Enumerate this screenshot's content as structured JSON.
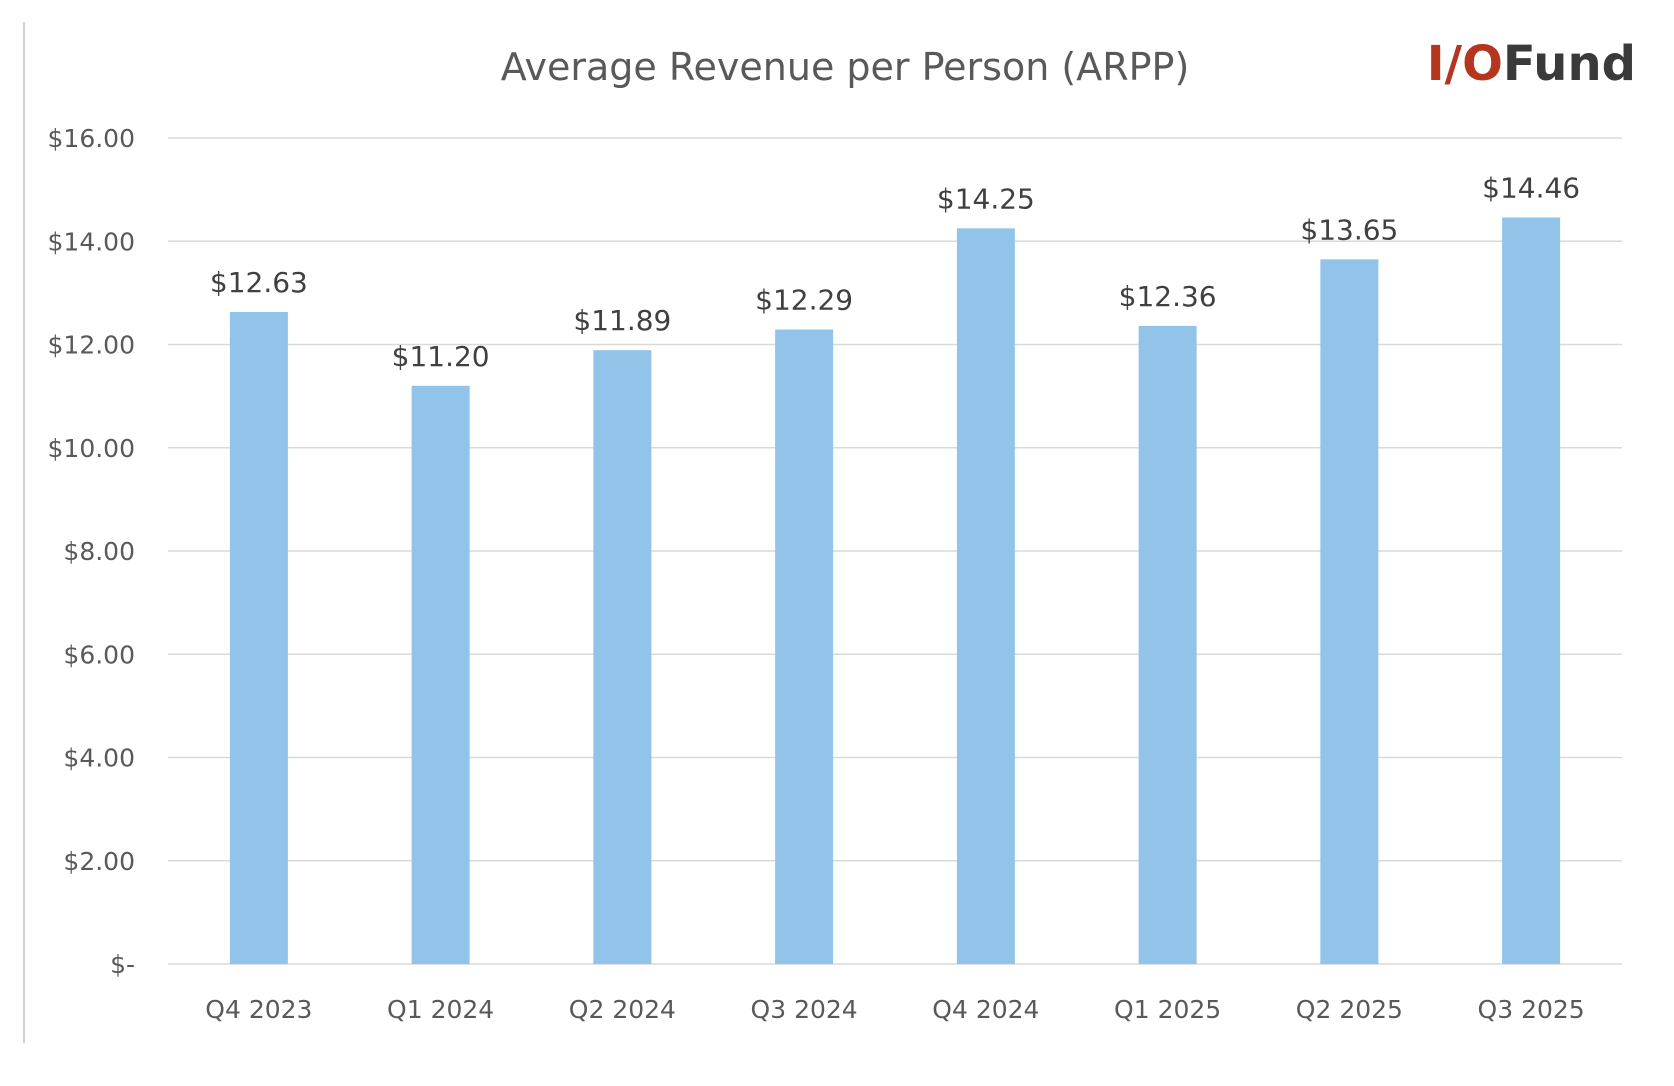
{
  "logo": {
    "text_primary": "I/O",
    "text_secondary": "Fund",
    "color_primary": "#b5361f",
    "color_secondary": "#3a3a3a"
  },
  "colors": {
    "bar": "#92c3e8",
    "grid": "#d9d9d9",
    "axis_text": "#595959",
    "label_text": "#404040",
    "title_text": "#595959",
    "frame": "#bfbfbf"
  },
  "chart_data": {
    "type": "bar",
    "title": "Average Revenue per Person (ARPP)",
    "xlabel": "",
    "ylabel": "",
    "categories": [
      "Q4 2023",
      "Q1 2024",
      "Q2 2024",
      "Q3 2024",
      "Q4 2024",
      "Q1 2025",
      "Q2 2025",
      "Q3 2025"
    ],
    "values": [
      12.63,
      11.2,
      11.89,
      12.29,
      14.25,
      12.36,
      13.65,
      14.46
    ],
    "data_labels": [
      "$12.63",
      "$11.20",
      "$11.89",
      "$12.29",
      "$14.25",
      "$12.36",
      "$13.65",
      "$14.46"
    ],
    "ylim": [
      0,
      16
    ],
    "yticks": [
      0,
      2,
      4,
      6,
      8,
      10,
      12,
      14,
      16
    ],
    "ytick_labels": [
      "$-",
      "$2.00",
      "$4.00",
      "$6.00",
      "$8.00",
      "$10.00",
      "$12.00",
      "$14.00",
      "$16.00"
    ],
    "grid": true,
    "legend": "none"
  }
}
